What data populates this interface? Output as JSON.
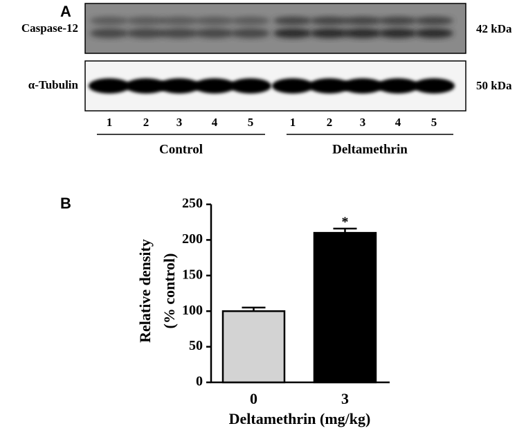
{
  "panel_a": {
    "label": "A",
    "rows": [
      {
        "label": "Caspase-12",
        "size": "42 kDa"
      },
      {
        "label": "α-Tubulin",
        "size": "50 kDa"
      }
    ],
    "groups": [
      {
        "name": "Control",
        "lanes": [
          "1",
          "2",
          "3",
          "4",
          "5"
        ]
      },
      {
        "name": "Deltamethrin",
        "lanes": [
          "1",
          "2",
          "3",
          "4",
          "5"
        ]
      }
    ]
  },
  "chart_data": {
    "type": "bar",
    "panel_label": "B",
    "categories": [
      "0",
      "3"
    ],
    "values": [
      100,
      210
    ],
    "errors": [
      5,
      6
    ],
    "colors": [
      "#d3d3d3",
      "#000000"
    ],
    "markers": [
      null,
      "*"
    ],
    "xlabel": "Deltamethrin (mg/kg)",
    "ylabel": [
      "Relative density",
      "(% control)"
    ],
    "ylim": [
      0,
      250
    ],
    "yticks": [
      0,
      50,
      100,
      150,
      200,
      250
    ]
  }
}
